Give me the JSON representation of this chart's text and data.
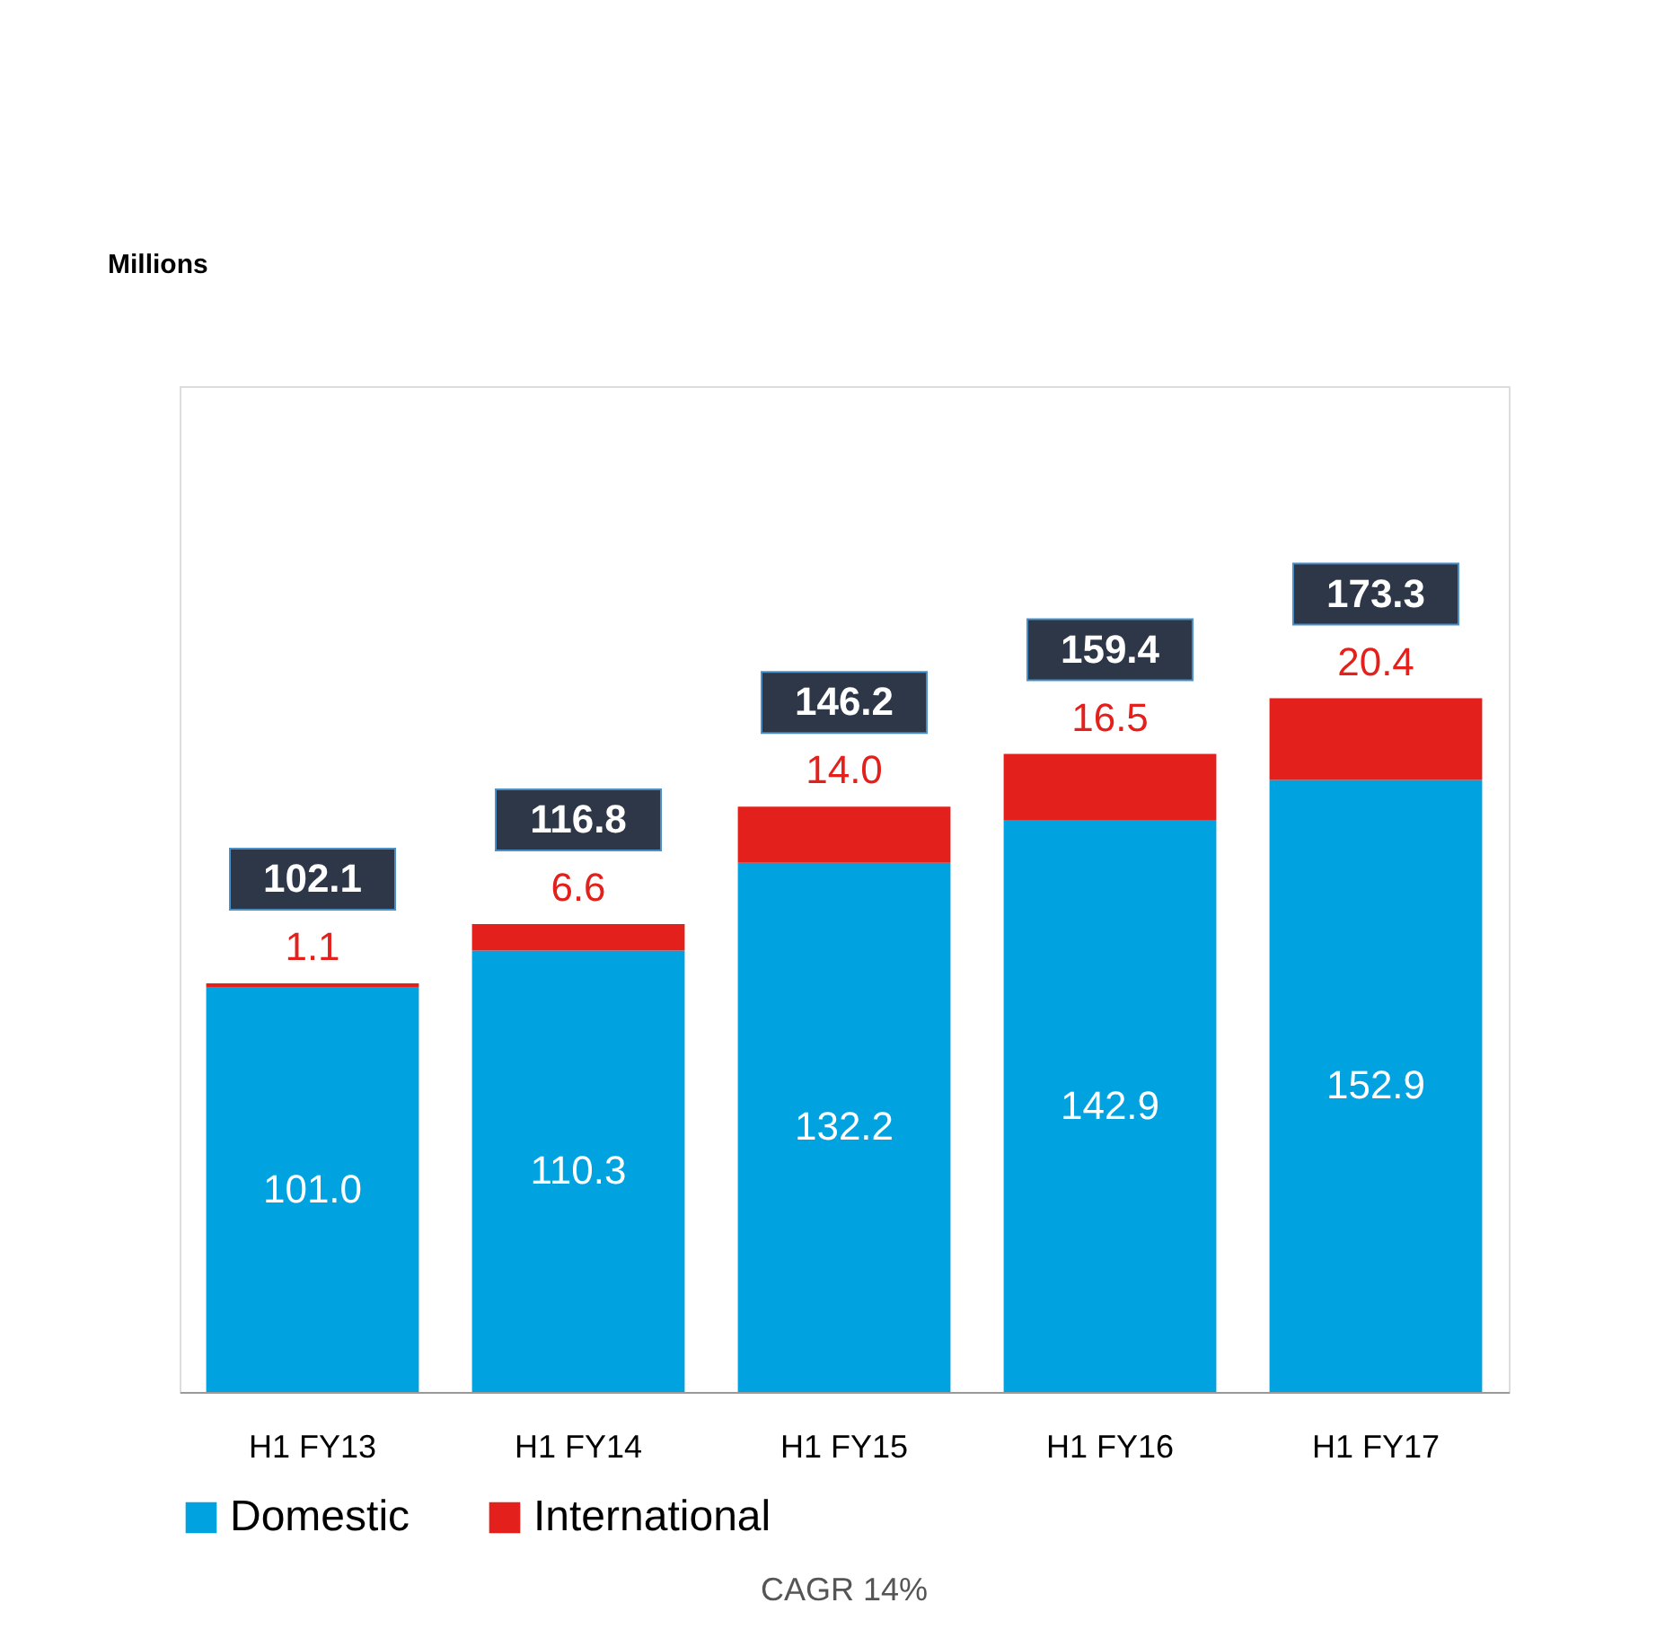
{
  "chart_data": {
    "type": "bar",
    "stacked": true,
    "categories": [
      "H1 FY13",
      "H1 FY14",
      "H1 FY15",
      "H1 FY16",
      "H1 FY17"
    ],
    "series": [
      {
        "name": "Domestic",
        "color": "#00a3e0",
        "values": [
          101.0,
          110.3,
          132.2,
          142.9,
          152.9
        ],
        "value_labels": [
          "101.0",
          "110.3",
          "132.2",
          "142.9",
          "152.9"
        ]
      },
      {
        "name": "International",
        "color": "#e3201b",
        "values": [
          1.1,
          6.6,
          14.0,
          16.5,
          20.4
        ],
        "value_labels": [
          "1.1",
          "6.6",
          "14.0",
          "16.5",
          "20.4"
        ]
      }
    ],
    "totals": [
      "102.1",
      "116.8",
      "146.2",
      "159.4",
      "173.3"
    ],
    "legend": "bottom",
    "grid": false,
    "tick_labels": "x",
    "annotations": [
      "Millions",
      "CAGR 14%"
    ]
  }
}
